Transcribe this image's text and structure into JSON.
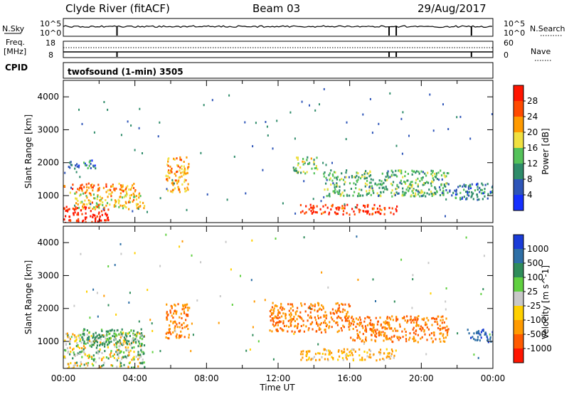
{
  "header": {
    "station": "Clyde River (fitACF)",
    "beam": "Beam 03",
    "date": "29/Aug/2017"
  },
  "status_panels": {
    "nsky_label": "N.Sky",
    "nsky_ticks": [
      "10^5",
      "10^0"
    ],
    "nsearch_label": "N.Search",
    "nsearch_ticks": [
      "10^5",
      "10^0"
    ],
    "freq_label_line1": "Freq.",
    "freq_label_line2": "[MHz]",
    "freq_ticks": [
      "18",
      "8"
    ],
    "nave_label": "Nave",
    "nave_ticks": [
      "60",
      "0"
    ],
    "cpid_label": "CPID",
    "cpid_value": "twofsound (1-min) 3505"
  },
  "chart_data": [
    {
      "type": "heatmap",
      "name": "Power",
      "xlabel": "Time UT",
      "ylabel": "Slant Range [km]",
      "x_ticks": [
        "00:00",
        "04:00",
        "08:00",
        "12:00",
        "16:00",
        "20:00",
        "00:00"
      ],
      "x_range_hours": [
        0,
        24
      ],
      "y_ticks": [
        1000,
        2000,
        3000,
        4000
      ],
      "y_range_km": [
        180,
        4500
      ],
      "colorbar": {
        "label": "Power [dB]",
        "ticks": [
          "4",
          "8",
          "12",
          "16",
          "20",
          "24",
          "28"
        ],
        "range": [
          0,
          30
        ],
        "colors": [
          "#1530ff",
          "#2e55b8",
          "#2f8c6a",
          "#55c25a",
          "#f0e040",
          "#ff9a00",
          "#ff4a00",
          "#ff1500"
        ]
      },
      "echo_regions": [
        {
          "t": [
            0.0,
            4.0
          ],
          "r": [
            1100,
            1400
          ],
          "level": 22
        },
        {
          "t": [
            0.0,
            2.5
          ],
          "r": [
            180,
            700
          ],
          "level": 29
        },
        {
          "t": [
            0.6,
            4.5
          ],
          "r": [
            600,
            1100
          ],
          "level": 18
        },
        {
          "t": [
            0.2,
            1.8
          ],
          "r": [
            1850,
            2100
          ],
          "level": 8
        },
        {
          "t": [
            5.7,
            7.0
          ],
          "r": [
            1100,
            2200
          ],
          "level": 20
        },
        {
          "t": [
            12.8,
            14.2
          ],
          "r": [
            1700,
            2200
          ],
          "level": 14
        },
        {
          "t": [
            13.2,
            18.6
          ],
          "r": [
            450,
            750
          ],
          "level": 27
        },
        {
          "t": [
            14.5,
            21.5
          ],
          "r": [
            1000,
            1800
          ],
          "level": 12
        },
        {
          "t": [
            21.5,
            24.0
          ],
          "r": [
            900,
            1400
          ],
          "level": 8
        }
      ]
    },
    {
      "type": "heatmap",
      "name": "Velocity",
      "xlabel": "Time UT",
      "ylabel": "Slant Range [km]",
      "x_ticks": [
        "00:00",
        "04:00",
        "08:00",
        "12:00",
        "16:00",
        "20:00",
        "00:00"
      ],
      "x_range_hours": [
        0,
        24
      ],
      "y_ticks": [
        1000,
        2000,
        3000,
        4000
      ],
      "y_range_km": [
        180,
        4500
      ],
      "colorbar": {
        "label": "Velocity [m s^-1]",
        "ticks": [
          "1000",
          "500",
          "100",
          "25",
          "-25",
          "-100",
          "-500",
          "-1000"
        ],
        "colors": [
          "#1a3cd8",
          "#2e6fa6",
          "#2f8c5a",
          "#60d040",
          "#c8c8c8",
          "#ffd000",
          "#ff9a00",
          "#ff5a00",
          "#ff1500"
        ]
      },
      "echo_regions": [
        {
          "t": [
            0.0,
            4.5
          ],
          "r": [
            180,
            1300
          ],
          "velocity": 0
        },
        {
          "t": [
            1.0,
            4.5
          ],
          "r": [
            900,
            1400
          ],
          "velocity": 100
        },
        {
          "t": [
            5.7,
            7.0
          ],
          "r": [
            1100,
            2200
          ],
          "velocity": -300
        },
        {
          "t": [
            11.5,
            16.0
          ],
          "r": [
            1300,
            2200
          ],
          "velocity": -300
        },
        {
          "t": [
            13.2,
            18.6
          ],
          "r": [
            450,
            800
          ],
          "velocity": -100
        },
        {
          "t": [
            16.0,
            21.5
          ],
          "r": [
            1000,
            1800
          ],
          "velocity": -300
        },
        {
          "t": [
            22.5,
            24.0
          ],
          "r": [
            1000,
            1400
          ],
          "velocity": 700
        }
      ]
    }
  ]
}
